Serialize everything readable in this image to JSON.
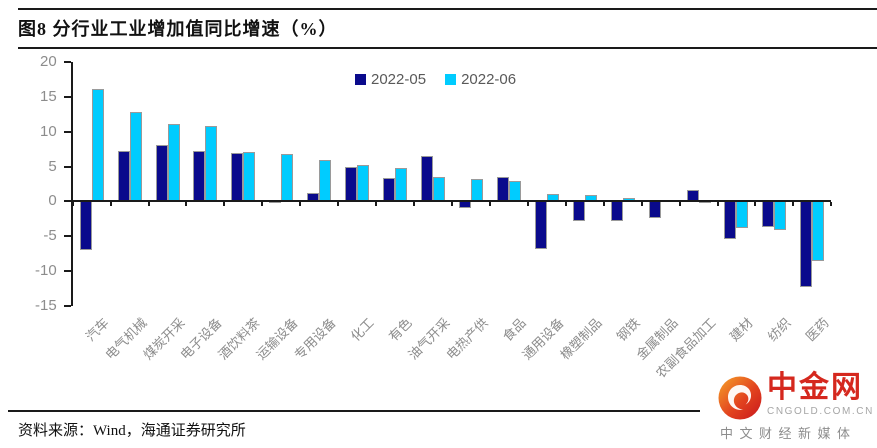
{
  "header": {
    "title": "图8  分行业工业增加值同比增速（%）"
  },
  "chart_data": {
    "type": "bar",
    "title": "分行业工业增加值同比增速（%）",
    "categories": [
      "汽车",
      "电气机械",
      "煤炭开采",
      "电子设备",
      "酒饮料茶",
      "运输设备",
      "专用设备",
      "化工",
      "有色",
      "油气开采",
      "电热产供",
      "食品",
      "通用设备",
      "橡塑制品",
      "钢铁",
      "金属制品",
      "农副食品加工",
      "建材",
      "纺织",
      "医药"
    ],
    "series": [
      {
        "name": "2022-05",
        "color": "#0a0a8c",
        "values": [
          -7.0,
          7.3,
          8.1,
          7.3,
          7.0,
          -0.2,
          1.2,
          4.9,
          3.4,
          6.6,
          -1.0,
          3.5,
          -6.9,
          -2.8,
          -2.8,
          -2.4,
          1.7,
          -5.4,
          -3.7,
          -12.3
        ]
      },
      {
        "name": "2022-06",
        "color": "#00ccff",
        "values": [
          16.2,
          12.9,
          11.2,
          10.9,
          7.1,
          6.8,
          6.0,
          5.3,
          4.8,
          3.5,
          3.2,
          3.0,
          1.1,
          0.9,
          0.5,
          0.0,
          -0.3,
          -3.8,
          -4.1,
          -8.6
        ]
      }
    ],
    "xlabel": "",
    "ylabel": "",
    "ylim": [
      -15,
      20
    ],
    "yticks": [
      20,
      15,
      10,
      5,
      0,
      -5,
      -10,
      -15
    ],
    "grid": false,
    "legend_position": "top-center"
  },
  "footer": {
    "source": "资料来源：Wind，海通证券研究所"
  },
  "watermark": {
    "brand": "中金网",
    "domain": "CNGOLD.COM.CN",
    "tagline": "中文财经新媒体",
    "brand_color": "#d5281e",
    "icon_colors": {
      "start": "#f6a329",
      "mid": "#e2431f",
      "end": "#c8161d"
    }
  }
}
